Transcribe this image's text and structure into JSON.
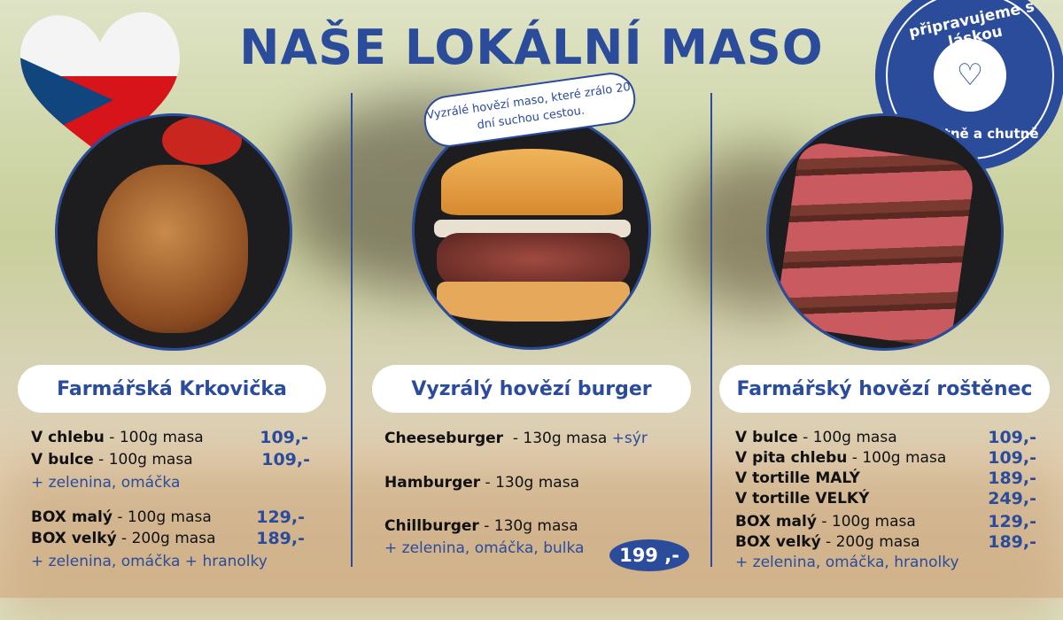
{
  "title": "NAŠE LOKÁLNÍ MASO",
  "colors": {
    "brand_blue": "#2b4b9b",
    "flag_red": "#d7141a",
    "flag_blue": "#11457e"
  },
  "badge": {
    "top_text": "připravujeme s láskou",
    "bottom_text": "kvalitně a chutně",
    "icon": "plate-heart-fork-knife-icon"
  },
  "flag": {
    "icon": "czech-flag-heart-icon"
  },
  "left": {
    "name": "Farmářská Krkovička",
    "items": [
      {
        "bold": "V chlebu",
        "rest": " - 100g masa",
        "price": "109,-"
      },
      {
        "bold": "V bulce",
        "rest": " - 100g masa",
        "price": "109,-"
      },
      {
        "bold": "BOX malý",
        "rest": " - 100g masa",
        "price": "129,-"
      },
      {
        "bold": "BOX velký",
        "rest": " - 200g masa",
        "price": "189,-"
      }
    ],
    "note1": "+ zelenina, omáčka",
    "note2": "+ zelenina, omáčka + hranolky"
  },
  "middle": {
    "bubble": "Vyzrálé hovězí maso, které zrálo 20 dní suchou cestou.",
    "name": "Vyzrálý hovězí burger",
    "items": [
      {
        "bold": "Cheeseburger",
        "rest": "  - 130g masa ",
        "extra": "+sýr"
      },
      {
        "bold": "Hamburger",
        "rest": " - 130g masa"
      },
      {
        "bold": "Chillburger",
        "rest": " - 130g masa"
      }
    ],
    "note": "+ zelenina, omáčka, bulka",
    "price": "199 ,-"
  },
  "right": {
    "name": "Farmářský hovězí roštěnec",
    "items": [
      {
        "bold": "V bulce",
        "rest": " - 100g masa",
        "price": "109,-"
      },
      {
        "bold": "V pita chlebu",
        "rest": " - 100g masa",
        "price": "109,-"
      },
      {
        "bold": "V tortille MALÝ",
        "rest": "",
        "price": "189,-"
      },
      {
        "bold": "V tortille VELKÝ",
        "rest": "",
        "price": "249,-"
      },
      {
        "bold": "BOX malý",
        "rest": " - 100g masa",
        "price": "129,-"
      },
      {
        "bold": "BOX velký",
        "rest": " - 200g masa",
        "price": "189,-"
      }
    ],
    "note": "+ zelenina, omáčka, hranolky"
  }
}
